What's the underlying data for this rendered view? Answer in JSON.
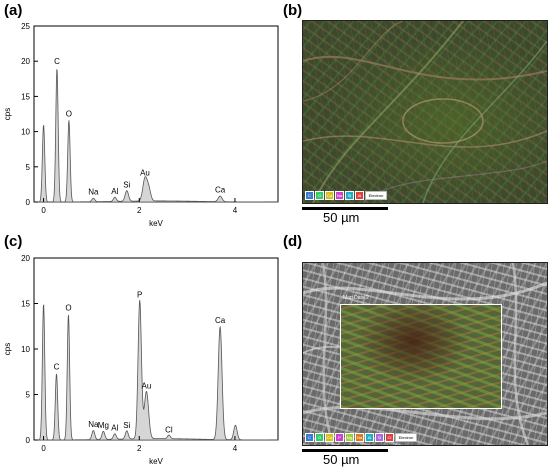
{
  "panels": {
    "a": "(a)",
    "b": "(b)",
    "c": "(c)",
    "d": "(d)"
  },
  "chart_data": [
    {
      "type": "line",
      "area_fill": true,
      "xlabel": "keV",
      "ylabel": "cps",
      "xlim": [
        -0.2,
        4.9
      ],
      "ylim": [
        0,
        25
      ],
      "xticks": [
        0,
        2,
        4
      ],
      "yticks": [
        0,
        5,
        10,
        15,
        20,
        25
      ],
      "peaks": [
        {
          "x": 0.0,
          "y": 11,
          "w": 0.025
        },
        {
          "x": 0.28,
          "y": 19,
          "w": 0.025
        },
        {
          "x": 0.53,
          "y": 11.6,
          "w": 0.025
        },
        {
          "x": 1.04,
          "y": 0.5,
          "w": 0.03
        },
        {
          "x": 1.49,
          "y": 0.6,
          "w": 0.03
        },
        {
          "x": 1.74,
          "y": 1.5,
          "w": 0.035
        },
        {
          "x": 2.12,
          "y": 3.2,
          "w": 0.045
        },
        {
          "x": 2.2,
          "y": 1.6,
          "w": 0.04
        },
        {
          "x": 3.69,
          "y": 0.8,
          "w": 0.04
        }
      ],
      "annotations": [
        {
          "text": "C",
          "x": 0.28,
          "y": 19
        },
        {
          "text": "O",
          "x": 0.53,
          "y": 11.6
        },
        {
          "text": "Na",
          "x": 1.04,
          "y": 0.5
        },
        {
          "text": "Al",
          "x": 1.49,
          "y": 0.6
        },
        {
          "text": "Si",
          "x": 1.74,
          "y": 1.5
        },
        {
          "text": "Au",
          "x": 2.12,
          "y": 3.2
        },
        {
          "text": "Ca",
          "x": 3.69,
          "y": 0.8
        }
      ]
    },
    {
      "type": "line",
      "area_fill": true,
      "xlabel": "keV",
      "ylabel": "cps",
      "xlim": [
        -0.2,
        4.9
      ],
      "ylim": [
        0,
        20
      ],
      "xticks": [
        0,
        2,
        4
      ],
      "yticks": [
        0,
        5,
        10,
        15,
        20
      ],
      "peaks": [
        {
          "x": 0.0,
          "y": 15,
          "w": 0.025
        },
        {
          "x": 0.27,
          "y": 7.3,
          "w": 0.025
        },
        {
          "x": 0.52,
          "y": 13.8,
          "w": 0.025
        },
        {
          "x": 1.04,
          "y": 1.0,
          "w": 0.03
        },
        {
          "x": 1.25,
          "y": 0.9,
          "w": 0.03
        },
        {
          "x": 1.49,
          "y": 0.6,
          "w": 0.03
        },
        {
          "x": 1.74,
          "y": 0.9,
          "w": 0.03
        },
        {
          "x": 2.01,
          "y": 15.2,
          "w": 0.035
        },
        {
          "x": 2.15,
          "y": 5.2,
          "w": 0.045
        },
        {
          "x": 2.62,
          "y": 0.4,
          "w": 0.03
        },
        {
          "x": 3.69,
          "y": 12.4,
          "w": 0.04
        },
        {
          "x": 4.01,
          "y": 1.6,
          "w": 0.035
        }
      ],
      "annotations": [
        {
          "text": "C",
          "x": 0.27,
          "y": 7.3
        },
        {
          "text": "O",
          "x": 0.52,
          "y": 13.8
        },
        {
          "text": "Na",
          "x": 1.04,
          "y": 1.0
        },
        {
          "text": "Mg",
          "x": 1.25,
          "y": 0.9
        },
        {
          "text": "Al",
          "x": 1.49,
          "y": 0.6
        },
        {
          "text": "Si",
          "x": 1.74,
          "y": 0.9
        },
        {
          "text": "P",
          "x": 2.01,
          "y": 15.2
        },
        {
          "text": "Au",
          "x": 2.15,
          "y": 5.2
        },
        {
          "text": "Cl",
          "x": 2.62,
          "y": 0.4
        },
        {
          "text": "Ca",
          "x": 3.69,
          "y": 12.4
        }
      ]
    }
  ],
  "maps": {
    "b": {
      "scale_label": "50 µm",
      "legend": [
        {
          "label": "C",
          "color": "#3a7bd5"
        },
        {
          "label": "O",
          "color": "#33cc66"
        },
        {
          "label": "Ca",
          "color": "#d4c020"
        },
        {
          "label": "Na",
          "color": "#cc44cc"
        },
        {
          "label": "Si",
          "color": "#1fb0c8"
        },
        {
          "label": "Al",
          "color": "#e04040"
        },
        {
          "label": "Electron",
          "color": "#ffffff"
        }
      ]
    },
    "d": {
      "scale_label": "50 µm",
      "box_label": "Map Data 2",
      "legend": [
        {
          "label": "C",
          "color": "#3a7bd5"
        },
        {
          "label": "O",
          "color": "#33cc66"
        },
        {
          "label": "Ca",
          "color": "#d4c020"
        },
        {
          "label": "P",
          "color": "#cc44cc"
        },
        {
          "label": "Mg",
          "color": "#9fd13a"
        },
        {
          "label": "Na",
          "color": "#e07a20"
        },
        {
          "label": "Al",
          "color": "#1fb0c8"
        },
        {
          "label": "Si",
          "color": "#b06ae0"
        },
        {
          "label": "Cl",
          "color": "#e04040"
        },
        {
          "label": "Electron",
          "color": "#ffffff"
        }
      ]
    }
  }
}
